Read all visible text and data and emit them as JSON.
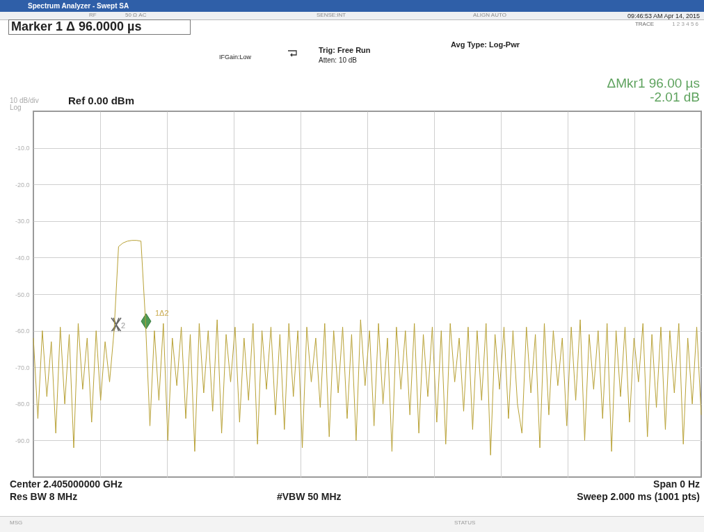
{
  "chart_data": {
    "type": "line",
    "title": "Spectrum Analyzer - Swept SA",
    "ylim": [
      -100,
      0
    ],
    "yticks": [
      {
        "value": -10,
        "label": "-10.0"
      },
      {
        "value": -20,
        "label": "-20.0"
      },
      {
        "value": -30,
        "label": "-30.0"
      },
      {
        "value": -40,
        "label": "-40.0"
      },
      {
        "value": -50,
        "label": "-50.0"
      },
      {
        "value": -60,
        "label": "-60.0"
      },
      {
        "value": -70,
        "label": "-70.0"
      },
      {
        "value": -80,
        "label": "-80.0"
      },
      {
        "value": -90,
        "label": "-90.0"
      }
    ],
    "tick_labels": "y",
    "grid": true,
    "categories": [
      null,
      null,
      null,
      null,
      null,
      null,
      null,
      null,
      null,
      null,
      null,
      null,
      null,
      null,
      null,
      null,
      null,
      null,
      null,
      null,
      null,
      null,
      null,
      null,
      null,
      null,
      null,
      null,
      null,
      null,
      null,
      null,
      null,
      null,
      null,
      null,
      null,
      null,
      null,
      null,
      null,
      null,
      null,
      null,
      null,
      null,
      null,
      null,
      null,
      null,
      null,
      null,
      null,
      null,
      null,
      null,
      null,
      null,
      null,
      null,
      null,
      null,
      null,
      null,
      null,
      null,
      null,
      null,
      null,
      null,
      null,
      null,
      null,
      null,
      null,
      null,
      null,
      null,
      null,
      null,
      null,
      null,
      null,
      null,
      null,
      null,
      null,
      null,
      null,
      null,
      null,
      null,
      null,
      null,
      null,
      null,
      null,
      null,
      null,
      null,
      null,
      null,
      null,
      null,
      null,
      null,
      null,
      null,
      null,
      null,
      null,
      null,
      null,
      null,
      null,
      null,
      null,
      null,
      null,
      null,
      null,
      null,
      null,
      null,
      null,
      null,
      null,
      null,
      null,
      null,
      null,
      null,
      null,
      null,
      null,
      null,
      null,
      null,
      null,
      null,
      null,
      null,
      null,
      null,
      null,
      null,
      null,
      null,
      null,
      null
    ],
    "series": [
      {
        "color": "#b8a135",
        "values": [
          -62,
          -84,
          -60,
          -78,
          -63,
          -88,
          -59,
          -80,
          -61,
          -92,
          -58,
          -76,
          -62,
          -85,
          -60,
          -79,
          -63,
          -74,
          -60,
          -37,
          -36,
          -35.5,
          -35.3,
          -35.3,
          -35.5,
          -57,
          -86,
          -60,
          -79,
          -58,
          -90,
          -62,
          -75,
          -59,
          -84,
          -61,
          -93,
          -58,
          -77,
          -60,
          -82,
          -57,
          -88,
          -61,
          -74,
          -59,
          -85,
          -62,
          -79,
          -58,
          -91,
          -60,
          -76,
          -59,
          -83,
          -61,
          -87,
          -58,
          -78,
          -60,
          -92,
          -59,
          -74,
          -62,
          -81,
          -58,
          -89,
          -60,
          -77,
          -59,
          -84,
          -61,
          -90,
          -57,
          -75,
          -60,
          -86,
          -58,
          -80,
          -62,
          -93,
          -59,
          -76,
          -60,
          -83,
          -58,
          -88,
          -61,
          -78,
          -59,
          -85,
          -60,
          -91,
          -58,
          -74,
          -62,
          -82,
          -59,
          -87,
          -60,
          -79,
          -58,
          -94,
          -61,
          -76,
          -59,
          -84,
          -60,
          -80,
          -88,
          -59,
          -77,
          -61,
          -92,
          -58,
          -83,
          -60,
          -75,
          -62,
          -86,
          -59,
          -79,
          -57,
          -90,
          -61,
          -76,
          -60,
          -84,
          -58,
          -93,
          -60,
          -78,
          -59,
          -85,
          -62,
          -74,
          -58,
          -89,
          -61,
          -81,
          -59,
          -87,
          -60,
          -77,
          -58,
          -91,
          -62,
          -80,
          -59,
          -83
        ]
      }
    ],
    "annotations": [
      "Marker 1 Δ 96.0000 µs",
      "IFGain:Low",
      "Trig: Free Run",
      "Atten: 10 dB",
      "Avg Type: Log-Pwr",
      "09:46:53 AM Apr 14, 2015",
      "ΔMkr1 96.00 µs",
      "-2.01 dB",
      "10 dB/div",
      "Log",
      "Ref 0.00 dBm",
      "Center 2.405000000 GHz",
      "Res BW 8 MHz",
      "#VBW 50 MHz",
      "Span 0 Hz",
      "Sweep  2.000 ms (1001 pts)",
      "MSG",
      "STATUS",
      "RF",
      "50 Ω  AC",
      "SENSE:INT",
      "ALIGN AUTO",
      "TRACE",
      "1 2 3 4 5 6",
      "2",
      "1Δ2"
    ]
  }
}
